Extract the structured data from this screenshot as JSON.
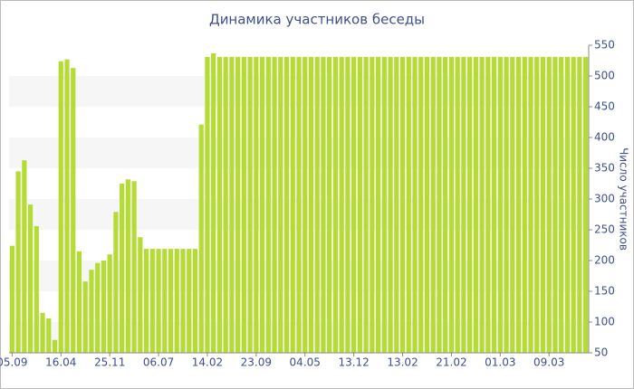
{
  "chart_data": {
    "type": "bar",
    "title": "Динамика участников беседы",
    "y_label": "Число участников",
    "categories": [
      "05.09",
      null,
      null,
      null,
      null,
      null,
      null,
      null,
      "16.04",
      null,
      null,
      null,
      null,
      null,
      null,
      null,
      "25.11",
      null,
      null,
      null,
      null,
      null,
      null,
      null,
      "06.07",
      null,
      null,
      null,
      null,
      null,
      null,
      null,
      "14.02",
      null,
      null,
      null,
      null,
      null,
      null,
      null,
      "23.09",
      null,
      null,
      null,
      null,
      null,
      null,
      null,
      "04.05",
      null,
      null,
      null,
      null,
      null,
      null,
      null,
      "13.12",
      null,
      null,
      null,
      null,
      null,
      null,
      null,
      "13.02",
      null,
      null,
      null,
      null,
      null,
      null,
      null,
      "21.02",
      null,
      null,
      null,
      null,
      null,
      null,
      null,
      "01.03",
      null,
      null,
      null,
      null,
      null,
      null,
      null,
      "09.03",
      null,
      null,
      null,
      null,
      null,
      null
    ],
    "values": [
      224,
      345,
      363,
      291,
      256,
      115,
      106,
      71,
      524,
      527,
      513,
      215,
      166,
      185,
      196,
      200,
      210,
      279,
      325,
      332,
      329,
      238,
      219,
      219,
      219,
      219,
      219,
      219,
      219,
      219,
      219,
      421,
      531,
      537,
      531,
      531,
      531,
      531,
      531,
      531,
      531,
      531,
      531,
      531,
      531,
      531,
      531,
      531,
      531,
      531,
      531,
      531,
      531,
      531,
      531,
      531,
      531,
      531,
      531,
      531,
      531,
      531,
      531,
      531,
      531,
      531,
      531,
      531,
      531,
      531,
      531,
      531,
      531,
      531,
      531,
      531,
      531,
      531,
      531,
      531,
      531,
      531,
      531,
      531,
      531,
      531,
      531,
      531,
      531,
      531,
      531,
      531,
      531,
      531,
      531
    ],
    "color": "#b5dc34",
    "ylim": [
      50,
      550
    ],
    "yticks": [
      50,
      100,
      150,
      200,
      250,
      300,
      350,
      400,
      450,
      500,
      550
    ],
    "y_axis_side": "right",
    "grid": true
  }
}
